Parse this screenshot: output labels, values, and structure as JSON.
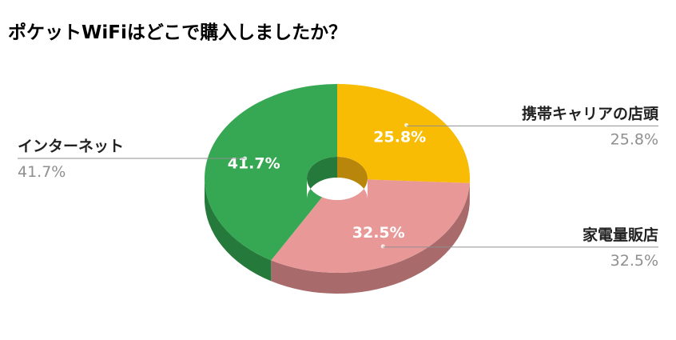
{
  "chart_data": {
    "type": "pie",
    "style": "3d-donut",
    "title": "ポケットWiFiはどこで購入しましたか？",
    "slices": [
      {
        "label": "携帯キャリアの店頭",
        "value": 25.8,
        "display": "25.8%",
        "color": "#f8bc05",
        "side_color": "#b7860b"
      },
      {
        "label": "家電量販店",
        "value": 32.5,
        "display": "32.5%",
        "color": "#e99898",
        "side_color": "#a86a6a"
      },
      {
        "label": "インターネット",
        "value": 41.7,
        "display": "41.7%",
        "color": "#36a853",
        "side_color": "#257a3b"
      }
    ],
    "start": "top",
    "direction": "clockwise"
  }
}
